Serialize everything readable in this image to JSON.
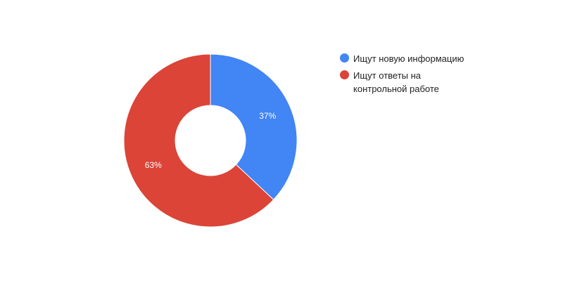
{
  "chart_data": {
    "type": "pie",
    "donut": true,
    "title": "",
    "slices": [
      {
        "label": "Ищут новую информацию",
        "value": 37,
        "value_label": "37%",
        "color": "#4285f4"
      },
      {
        "label": "Ищут ответы на контрольной работе",
        "value": 63,
        "value_label": "63%",
        "color": "#db4437"
      }
    ],
    "legend_position": "right"
  }
}
